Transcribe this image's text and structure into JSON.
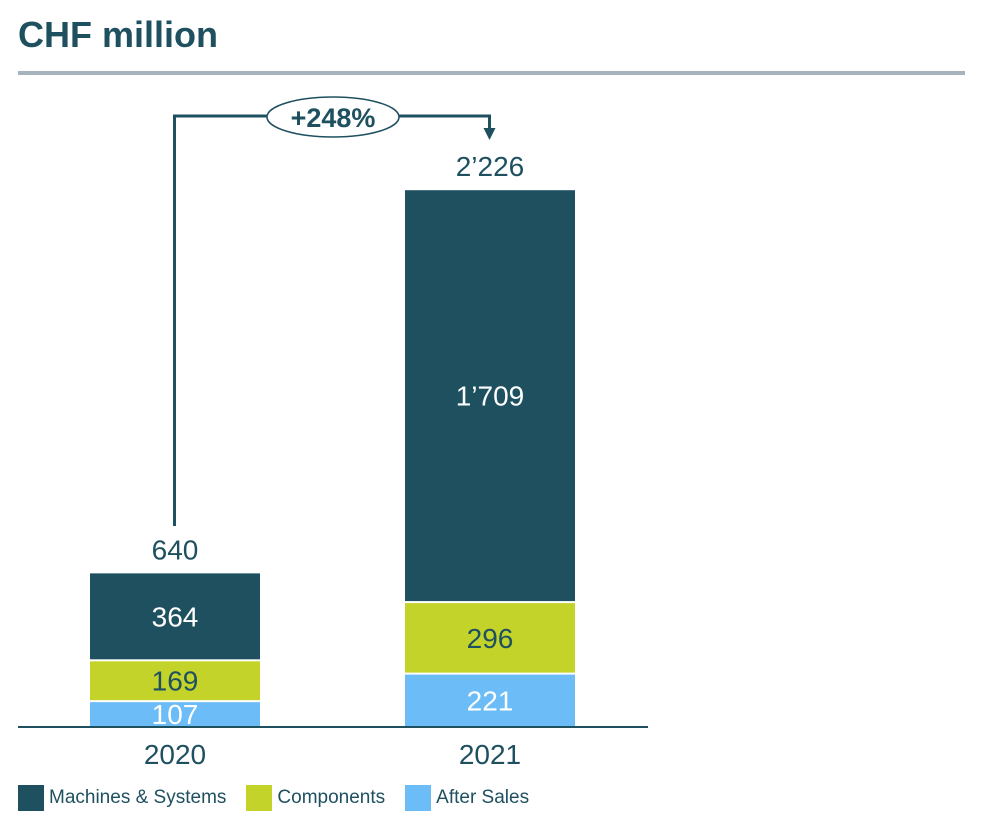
{
  "title": "CHF million",
  "chart_data": {
    "type": "bar",
    "stacked": true,
    "categories": [
      "2020",
      "2021"
    ],
    "series": [
      {
        "name": "After Sales",
        "values": [
          107,
          221
        ],
        "color": "#6bbcf7",
        "label_color": "#ffffff"
      },
      {
        "name": "Components",
        "values": [
          169,
          296
        ],
        "color": "#c3d32a",
        "label_color": "#1e5060"
      },
      {
        "name": "Machines & Systems",
        "values": [
          364,
          1709
        ],
        "color": "#1e5060",
        "label_color": "#ffffff"
      }
    ],
    "value_labels": [
      [
        "107",
        "221"
      ],
      [
        "169",
        "296"
      ],
      [
        "364",
        "1’709"
      ]
    ],
    "totals": [
      640,
      2226
    ],
    "total_labels": [
      "640",
      "2’226"
    ],
    "growth_label": "+248%",
    "legend": {
      "position": "bottom-left",
      "order": [
        "Machines & Systems",
        "Components",
        "After Sales"
      ]
    },
    "xlabel": "",
    "ylabel": "",
    "grid": false
  }
}
